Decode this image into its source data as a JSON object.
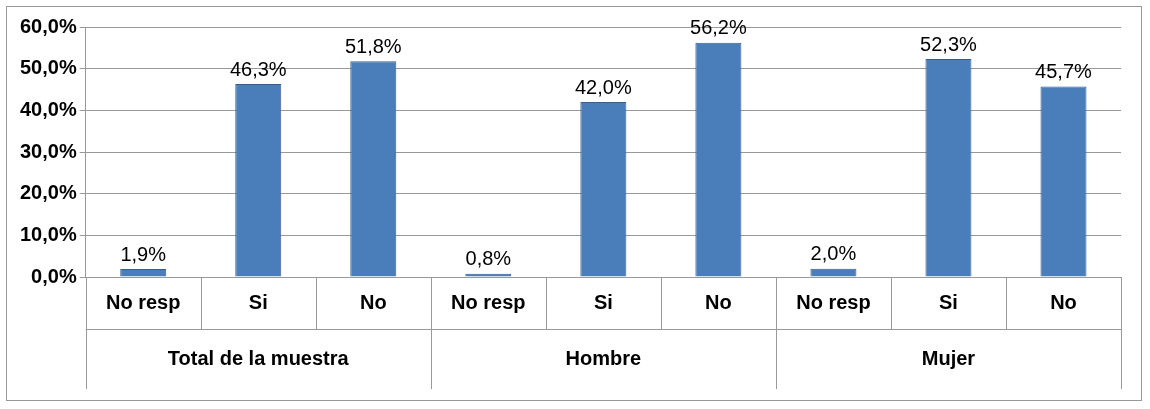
{
  "chart_data": {
    "type": "bar",
    "categories": [
      "No resp",
      "Si",
      "No",
      "No resp",
      "Si",
      "No",
      "No resp",
      "Si",
      "No"
    ],
    "values": [
      1.9,
      46.3,
      51.8,
      0.8,
      42.0,
      56.2,
      2.0,
      52.3,
      45.7
    ],
    "value_labels": [
      "1,9%",
      "46,3%",
      "51,8%",
      "0,8%",
      "42,0%",
      "56,2%",
      "2,0%",
      "52,3%",
      "45,7%"
    ],
    "color": "#4a7ebb",
    "annotations": [
      "Total de la muestra",
      "Hombre",
      "Mujer"
    ],
    "ylim": [
      0,
      60
    ],
    "yticks": [
      {
        "value": 0,
        "label": "0,0%"
      },
      {
        "value": 10,
        "label": "10,0%"
      },
      {
        "value": 20,
        "label": "20,0%"
      },
      {
        "value": 30,
        "label": "30,0%"
      },
      {
        "value": 40,
        "label": "40,0%"
      },
      {
        "value": 50,
        "label": "50,0%"
      },
      {
        "value": 60,
        "label": "60,0%"
      }
    ],
    "grid": "y",
    "legend": false
  }
}
